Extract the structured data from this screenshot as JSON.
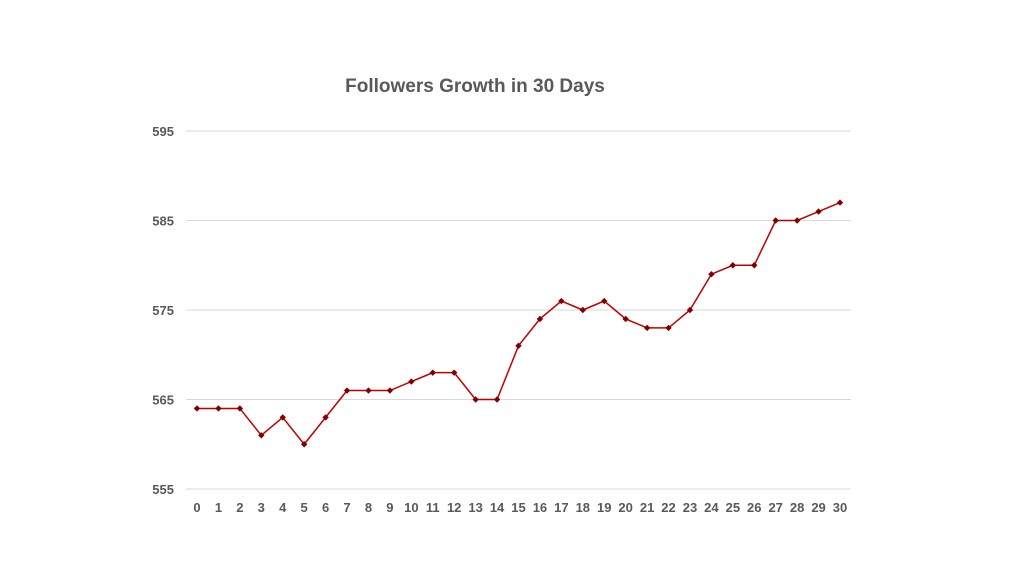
{
  "chart_data": {
    "type": "line",
    "title": "Followers Growth in 30 Days",
    "xlabel": "",
    "ylabel": "",
    "x": [
      0,
      1,
      2,
      3,
      4,
      5,
      6,
      7,
      8,
      9,
      10,
      11,
      12,
      13,
      14,
      15,
      16,
      17,
      18,
      19,
      20,
      21,
      22,
      23,
      24,
      25,
      26,
      27,
      28,
      29,
      30
    ],
    "series": [
      {
        "values": [
          564,
          564,
          564,
          561,
          563,
          560,
          563,
          566,
          566,
          566,
          567,
          568,
          568,
          565,
          565,
          571,
          574,
          576,
          575,
          576,
          574,
          573,
          573,
          575,
          579,
          580,
          580,
          585,
          585,
          586,
          587
        ]
      }
    ],
    "ylim": [
      555,
      595
    ],
    "yticks": [
      555,
      565,
      575,
      585,
      595
    ],
    "grid": true,
    "gridlines": "horizontal",
    "legend": "none",
    "marker": "diamond"
  },
  "colors": {
    "line": "#c00000",
    "marker": "#7f0000",
    "grid": "#d9d9d9",
    "axis_text": "#595959",
    "title": "#595959"
  }
}
